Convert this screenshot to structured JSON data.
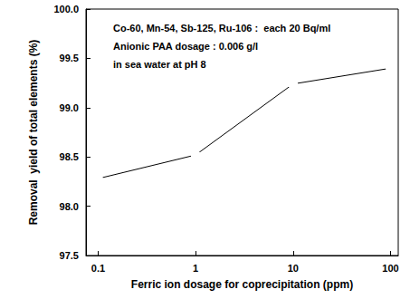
{
  "chart_data": {
    "type": "line",
    "x_label": "Ferric ion dosage for coprecipitation (ppm)",
    "y_label": "Removal  yield of total elements (%)",
    "annotations": [
      "Co-60, Mn-54, Sb-125, Ru-106 :  each 20 Bq/ml",
      "Anionic PAA dosage : 0.006 g/l",
      "in sea water at pH 8"
    ],
    "x": [
      0.1,
      1,
      10,
      100
    ],
    "values": [
      98.28,
      98.52,
      99.24,
      99.4
    ],
    "color": "#000000",
    "marker": "circle",
    "log": "x",
    "grid": false,
    "xlim": [
      0.075,
      120
    ],
    "xticks": [
      0.1,
      1,
      10,
      100
    ],
    "ylim": [
      97.5,
      100
    ],
    "yticks": [
      97.5,
      {
        "value": 98,
        "label": "98.0"
      },
      98.5,
      {
        "value": 99,
        "label": "99.0"
      },
      99.5,
      {
        "value": 100,
        "label": "100.0"
      }
    ]
  }
}
